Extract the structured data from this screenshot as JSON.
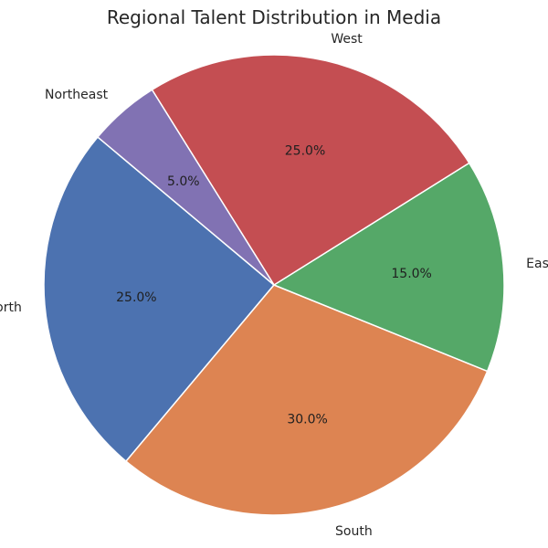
{
  "chart_data": {
    "type": "pie",
    "title": "Regional Talent Distribution in Media",
    "categories": [
      "North",
      "South",
      "East",
      "West",
      "Northeast"
    ],
    "values": [
      25,
      30,
      15,
      25,
      5
    ],
    "percent_labels": [
      "25.0%",
      "30.0%",
      "15.0%",
      "25.0%",
      "5.0%"
    ],
    "colors": [
      "#4c72b0",
      "#dd8452",
      "#55a868",
      "#c44e52",
      "#8172b3"
    ],
    "legend": "none",
    "start_angle_degrees": 140,
    "direction": "counterclockwise"
  }
}
